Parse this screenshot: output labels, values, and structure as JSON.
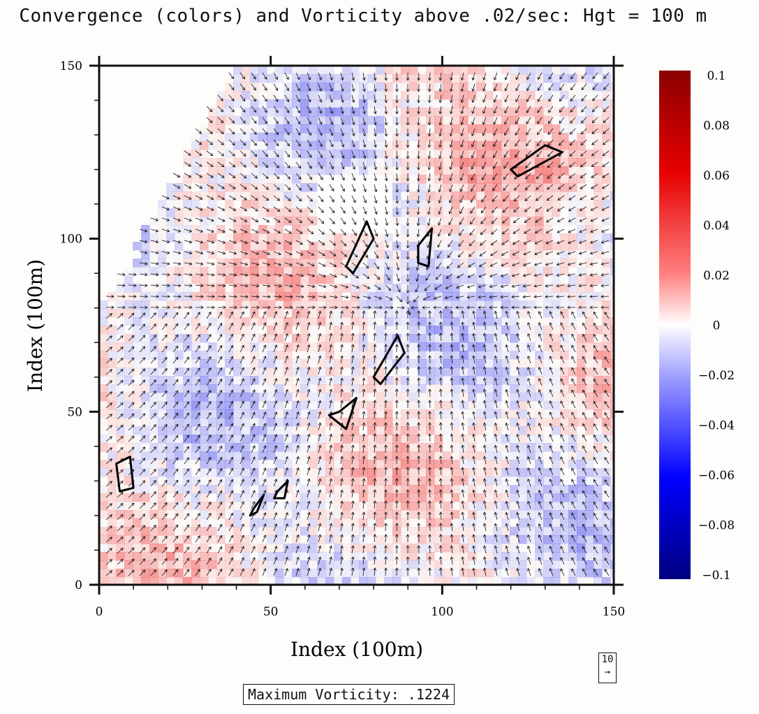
{
  "chart_data": {
    "type": "heatmap",
    "title": "Convergence (colors) and Vorticity above .02/sec: Hgt = 100 m",
    "xlabel": "Index (100m)",
    "ylabel": "Index (100m)",
    "xlim": [
      0,
      150
    ],
    "ylim": [
      0,
      150
    ],
    "x_ticks": [
      "0",
      "50",
      "100",
      "150"
    ],
    "y_ticks": [
      "0",
      "50",
      "100",
      "150"
    ],
    "colorbar": {
      "min": -0.1,
      "max": 0.1,
      "ticks": [
        "0.1",
        "0.08",
        "0.06",
        "0.04",
        "0.02",
        "0",
        "−0.02",
        "−0.04",
        "−0.06",
        "−0.08",
        "−0.1"
      ],
      "colors": {
        "positive": "#8b0000",
        "mid": "#ffffff",
        "negative": "#00007f"
      }
    },
    "vector_reference": {
      "value": "10",
      "arrow": "→"
    },
    "annotation": "Maximum Vorticity: .1224",
    "grid": false,
    "contours": [
      {
        "name": "vorticity-streak-center",
        "points": [
          [
            70,
            50
          ],
          [
            75,
            54
          ],
          [
            72,
            45
          ],
          [
            67,
            49
          ]
        ]
      },
      {
        "name": "vorticity-streak-upper",
        "points": [
          [
            80,
            60
          ],
          [
            87,
            72
          ],
          [
            89,
            67
          ],
          [
            82,
            58
          ]
        ]
      },
      {
        "name": "vorticity-cell-left",
        "points": [
          [
            5,
            35
          ],
          [
            9,
            37
          ],
          [
            10,
            28
          ],
          [
            6,
            27
          ]
        ]
      },
      {
        "name": "vorticity-cell-bottom",
        "points": [
          [
            45,
            22
          ],
          [
            48,
            26
          ],
          [
            46,
            21
          ],
          [
            44,
            20
          ]
        ]
      },
      {
        "name": "vorticity-cell-lower",
        "points": [
          [
            52,
            27
          ],
          [
            55,
            30
          ],
          [
            54,
            25
          ],
          [
            51,
            25
          ]
        ]
      },
      {
        "name": "vorticity-cell-top-right",
        "points": [
          [
            120,
            120
          ],
          [
            130,
            127
          ],
          [
            135,
            125
          ],
          [
            122,
            118
          ]
        ]
      },
      {
        "name": "vorticity-cell-top-mid",
        "points": [
          [
            93,
            98
          ],
          [
            97,
            103
          ],
          [
            96,
            92
          ],
          [
            93,
            93
          ]
        ]
      },
      {
        "name": "vorticity-cell-nw",
        "points": [
          [
            72,
            92
          ],
          [
            78,
            105
          ],
          [
            80,
            100
          ],
          [
            74,
            90
          ]
        ]
      }
    ]
  }
}
